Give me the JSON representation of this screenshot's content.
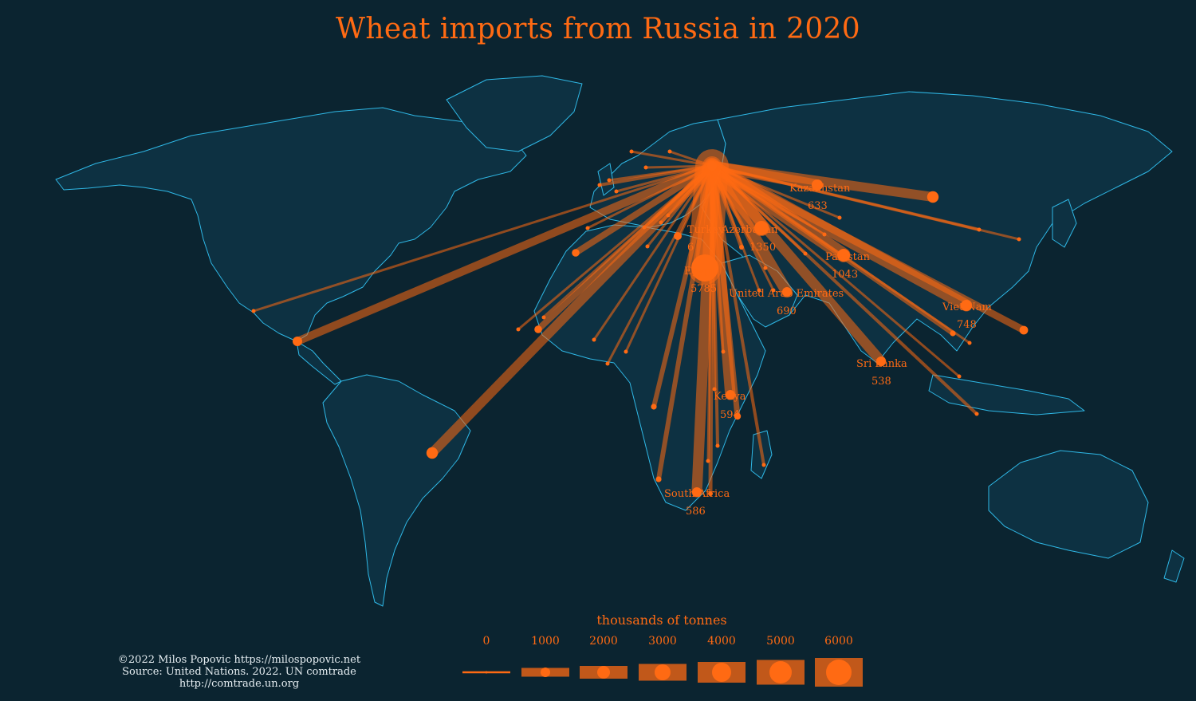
{
  "title": "Wheat imports from Russia in 2020",
  "legend": {
    "title": "thousands of tonnes",
    "levels": [
      "0",
      "1000",
      "2000",
      "3000",
      "4000",
      "5000",
      "6000"
    ]
  },
  "credits": {
    "line1": "©2022 Milos Popovic https://milospopovic.net",
    "line2": "Source: United Nations. 2022. UN comtrade",
    "line3": "http://comtrade.un.org"
  },
  "colors": {
    "background": "#0b2430",
    "land": "#0d3142",
    "borders": "#2fb8e6",
    "flow": "#ff6a13"
  },
  "labeled_countries": [
    {
      "name": "Kazakhstan",
      "value": "633"
    },
    {
      "name": "Azerbaijan",
      "value": "1350"
    },
    {
      "name": "Pakistan",
      "value": "1043"
    },
    {
      "name": "Egypt",
      "value": "5785"
    },
    {
      "name": "United Arab Emirates",
      "value": "690"
    },
    {
      "name": "Viet Nam",
      "value": "748"
    },
    {
      "name": "Sri Lanka",
      "value": "538"
    },
    {
      "name": "Kenya",
      "value": "594"
    },
    {
      "name": "South Africa",
      "value": "586"
    },
    {
      "name": "Turkey",
      "value": "6"
    }
  ]
}
